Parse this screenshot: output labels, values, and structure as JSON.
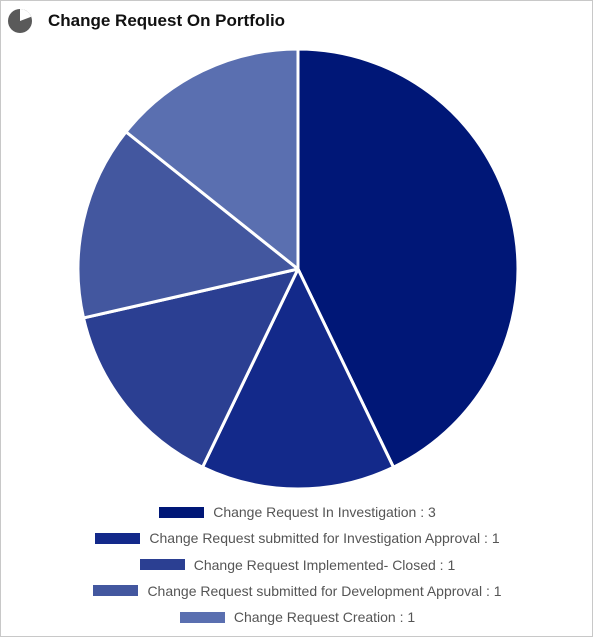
{
  "widget": {
    "title": "Change Request On Portfolio",
    "icon": "pie-chart-icon",
    "icon_color": "#5a5a5a"
  },
  "chart_data": {
    "type": "pie",
    "title": "Change Request On Portfolio",
    "legend_position": "bottom",
    "slices": [
      {
        "label": "Change Request In Investigation",
        "value": 3,
        "legend_text": "Change Request In Investigation : 3",
        "color": "#001777"
      },
      {
        "label": "Change Request submitted for Investigation Approval",
        "value": 1,
        "legend_text": "Change Request submitted for Investigation Approval : 1",
        "color": "#13298a"
      },
      {
        "label": "Change Request Implemented- Closed",
        "value": 1,
        "legend_text": "Change Request Implemented- Closed : 1",
        "color": "#2b3f92"
      },
      {
        "label": "Change Request submitted for Development Approval",
        "value": 1,
        "legend_text": "Change Request submitted for Development Approval : 1",
        "color": "#43579f"
      },
      {
        "label": "Change Request Creation",
        "value": 1,
        "legend_text": "Change Request Creation : 1",
        "color": "#5a6fb0"
      }
    ]
  }
}
